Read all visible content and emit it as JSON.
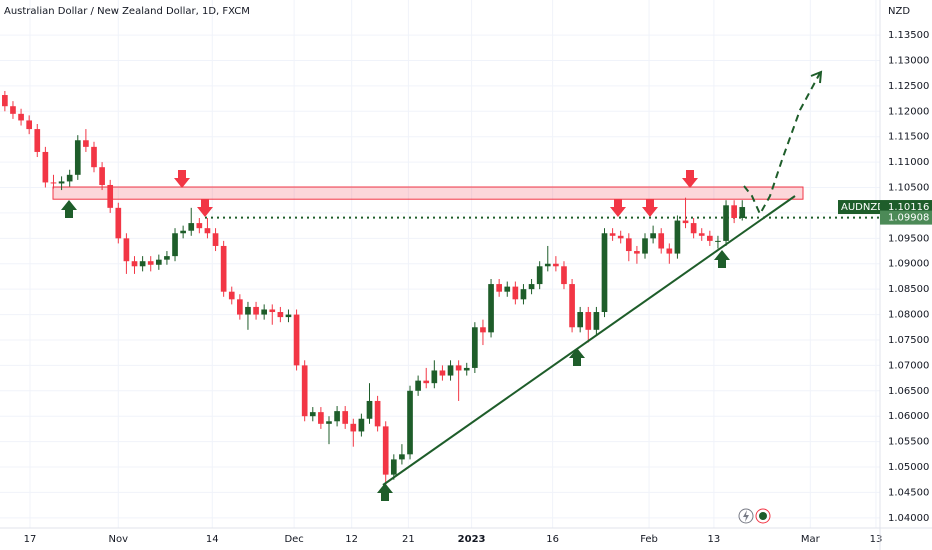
{
  "chart_data": {
    "type": "candlestick",
    "title": "Australian Dollar / New Zealand Dollar, 1D, FXCM",
    "currency": "NZD",
    "symbol": "AUDNZD",
    "last_price": 1.10116,
    "reference_line": 1.09908,
    "resistance_zone": [
      1.1027,
      1.1051
    ],
    "up_color": "#1e5d2a",
    "down_color": "#f23645",
    "grid": true,
    "ylim": [
      1.038,
      1.1419
    ],
    "yticks": [
      {
        "value": 1.04,
        "label": "1.04000"
      },
      {
        "value": 1.045,
        "label": "1.04500"
      },
      {
        "value": 1.05,
        "label": "1.05000"
      },
      {
        "value": 1.055,
        "label": "1.05500"
      },
      {
        "value": 1.06,
        "label": "1.06000"
      },
      {
        "value": 1.065,
        "label": "1.06500"
      },
      {
        "value": 1.07,
        "label": "1.07000"
      },
      {
        "value": 1.075,
        "label": "1.07500"
      },
      {
        "value": 1.08,
        "label": "1.08000"
      },
      {
        "value": 1.085,
        "label": "1.08500"
      },
      {
        "value": 1.09,
        "label": "1.09000"
      },
      {
        "value": 1.095,
        "label": "1.09500"
      },
      {
        "value": 1.1,
        "label": "1.10000"
      },
      {
        "value": 1.105,
        "label": "1.10500"
      },
      {
        "value": 1.11,
        "label": "1.11000"
      },
      {
        "value": 1.115,
        "label": "1.11500"
      },
      {
        "value": 1.12,
        "label": "1.12000"
      },
      {
        "value": 1.125,
        "label": "1.12500"
      },
      {
        "value": 1.13,
        "label": "1.13000"
      },
      {
        "value": 1.135,
        "label": "1.13500"
      }
    ],
    "xlim": [
      -0.6,
      108
    ],
    "xticks": [
      {
        "value": 3.1,
        "label": "17"
      },
      {
        "value": 14,
        "label": "Nov"
      },
      {
        "value": 25.6,
        "label": "14"
      },
      {
        "value": 35.7,
        "label": "Dec"
      },
      {
        "value": 42.8,
        "label": "12"
      },
      {
        "value": 49.8,
        "label": "21"
      },
      {
        "value": 57.6,
        "label": "2023"
      },
      {
        "value": 67.6,
        "label": "16"
      },
      {
        "value": 79.5,
        "label": "Feb"
      },
      {
        "value": 87.5,
        "label": "13"
      },
      {
        "value": 99.4,
        "label": "Mar"
      },
      {
        "value": 107.5,
        "label": "13"
      }
    ],
    "open": [
      1.1232,
      1.121,
      1.1195,
      1.1182,
      1.1165,
      1.112,
      1.106,
      1.1058,
      1.1062,
      1.1075,
      1.1143,
      1.113,
      1.109,
      1.1055,
      1.101,
      1.095,
      1.0905,
      1.0895,
      1.0905,
      1.0898,
      1.0908,
      1.0915,
      1.096,
      1.0965,
      1.098,
      1.097,
      1.096,
      1.0935,
      1.0845,
      1.083,
      1.08,
      1.0815,
      1.08,
      1.081,
      1.0805,
      1.0795,
      1.08,
      1.07,
      1.06,
      1.0608,
      1.0585,
      1.059,
      1.061,
      1.0585,
      1.057,
      1.0595,
      1.063,
      1.058,
      1.0485,
      1.0515,
      1.0525,
      1.065,
      1.067,
      1.0665,
      1.069,
      1.068,
      1.07,
      1.069,
      1.0695,
      1.0775,
      1.0765,
      1.086,
      1.0845,
      1.0855,
      1.083,
      1.085,
      1.086,
      1.0895,
      1.09,
      1.0895,
      1.086,
      1.0775,
      1.0805,
      1.077,
      1.0805,
      1.096,
      1.0955,
      1.095,
      1.0925,
      1.092,
      1.095,
      1.096,
      1.093,
      1.092,
      1.0985,
      1.098,
      1.096,
      1.0955,
      1.0945,
      1.0945,
      1.1015,
      1.099
    ],
    "high": [
      1.124,
      1.122,
      1.1205,
      1.1192,
      1.1175,
      1.113,
      1.1075,
      1.1072,
      1.1085,
      1.1153,
      1.1165,
      1.114,
      1.11,
      1.1065,
      1.102,
      1.096,
      1.0915,
      1.0915,
      1.0915,
      1.0918,
      1.0925,
      1.097,
      1.0975,
      1.101,
      1.099,
      1.099,
      1.097,
      1.0945,
      1.0855,
      1.084,
      1.0825,
      1.0825,
      1.082,
      1.082,
      1.0815,
      1.081,
      1.081,
      1.071,
      1.0618,
      1.0618,
      1.06,
      1.062,
      1.062,
      1.0595,
      1.0605,
      1.0665,
      1.064,
      1.059,
      1.0525,
      1.0545,
      1.066,
      1.068,
      1.0695,
      1.071,
      1.07,
      1.071,
      1.071,
      1.0705,
      1.0785,
      1.079,
      1.087,
      1.087,
      1.0865,
      1.0865,
      1.086,
      1.087,
      1.0905,
      1.0935,
      1.0915,
      1.0905,
      1.087,
      1.0815,
      1.0815,
      1.0815,
      1.097,
      1.097,
      1.0965,
      1.096,
      1.0935,
      1.096,
      1.0975,
      1.097,
      1.094,
      1.0995,
      1.103,
      1.099,
      1.097,
      1.0965,
      1.0955,
      1.1025,
      1.1025,
      1.1025
    ],
    "low": [
      1.12,
      1.1185,
      1.1172,
      1.1155,
      1.111,
      1.105,
      1.1048,
      1.1045,
      1.1052,
      1.1065,
      1.112,
      1.108,
      1.1045,
      1.1,
      1.094,
      1.088,
      1.088,
      1.0885,
      1.0885,
      1.0888,
      1.0898,
      1.0905,
      1.095,
      1.0955,
      1.096,
      1.095,
      1.0925,
      1.0835,
      1.082,
      1.079,
      1.077,
      1.079,
      1.079,
      1.078,
      1.0785,
      1.0785,
      1.069,
      1.059,
      1.059,
      1.0575,
      1.0545,
      1.058,
      1.0575,
      1.054,
      1.056,
      1.0585,
      1.057,
      1.046,
      1.0475,
      1.0505,
      1.0515,
      1.064,
      1.0655,
      1.0655,
      1.067,
      1.067,
      1.063,
      1.068,
      1.0685,
      1.074,
      1.0755,
      1.0835,
      1.0835,
      1.082,
      1.082,
      1.084,
      1.085,
      1.0885,
      1.0885,
      1.085,
      1.0765,
      1.0765,
      1.0745,
      1.076,
      1.0795,
      1.0945,
      1.094,
      1.0905,
      1.09,
      1.091,
      1.094,
      1.092,
      1.09,
      1.091,
      1.097,
      1.095,
      1.0945,
      1.0935,
      1.093,
      1.0935,
      1.098,
      1.0985
    ],
    "close": [
      1.121,
      1.1195,
      1.1182,
      1.1165,
      1.112,
      1.106,
      1.1058,
      1.1062,
      1.1075,
      1.1143,
      1.113,
      1.109,
      1.1055,
      1.101,
      1.095,
      1.0905,
      1.0895,
      1.0905,
      1.0898,
      1.0908,
      1.0915,
      1.096,
      1.0965,
      1.098,
      1.097,
      1.096,
      1.0935,
      1.0845,
      1.083,
      1.08,
      1.0815,
      1.08,
      1.081,
      1.0805,
      1.0795,
      1.08,
      1.07,
      1.06,
      1.0608,
      1.0585,
      1.059,
      1.061,
      1.0585,
      1.057,
      1.0595,
      1.063,
      1.058,
      1.0485,
      1.0515,
      1.0525,
      1.065,
      1.067,
      1.0665,
      1.069,
      1.068,
      1.07,
      1.069,
      1.0695,
      1.0775,
      1.0765,
      1.086,
      1.0845,
      1.0855,
      1.083,
      1.085,
      1.086,
      1.0895,
      1.09,
      1.0895,
      1.086,
      1.0775,
      1.0805,
      1.077,
      1.0805,
      1.096,
      1.0955,
      1.095,
      1.0925,
      1.092,
      1.095,
      1.096,
      1.093,
      1.092,
      1.0985,
      1.098,
      1.096,
      1.0955,
      1.0945,
      1.0945,
      1.1015,
      1.099,
      1.10116
    ]
  }
}
